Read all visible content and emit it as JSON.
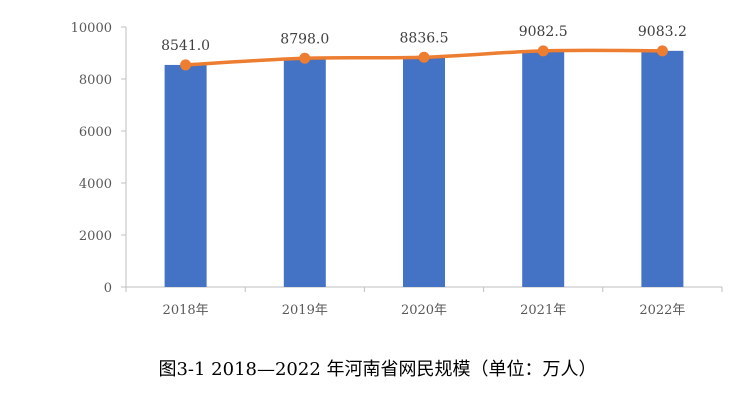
{
  "caption": "图3-1 2018—2022 年河南省网民规模（单位：万人）",
  "colors": {
    "bar": "#4472C4",
    "line": "#ED7D31",
    "axis": "#BFBFBF",
    "text": "#595959"
  },
  "chart_data": {
    "type": "bar",
    "categories": [
      "2018年",
      "2019年",
      "2020年",
      "2021年",
      "2022年"
    ],
    "values": [
      8541.0,
      8798.0,
      8836.5,
      9082.5,
      9083.2
    ],
    "data_labels": [
      "8541.0",
      "8798.0",
      "8836.5",
      "9082.5",
      "9083.2"
    ],
    "overlay_line": {
      "type": "line",
      "values": [
        8541.0,
        8798.0,
        8836.5,
        9082.5,
        9083.2
      ],
      "markers": "circle"
    },
    "yticks": [
      "0",
      "2000",
      "4000",
      "6000",
      "8000",
      "10000"
    ],
    "ylim": [
      0,
      10000
    ],
    "xlabel": "",
    "ylabel": "",
    "grid": false,
    "legend": "none"
  }
}
